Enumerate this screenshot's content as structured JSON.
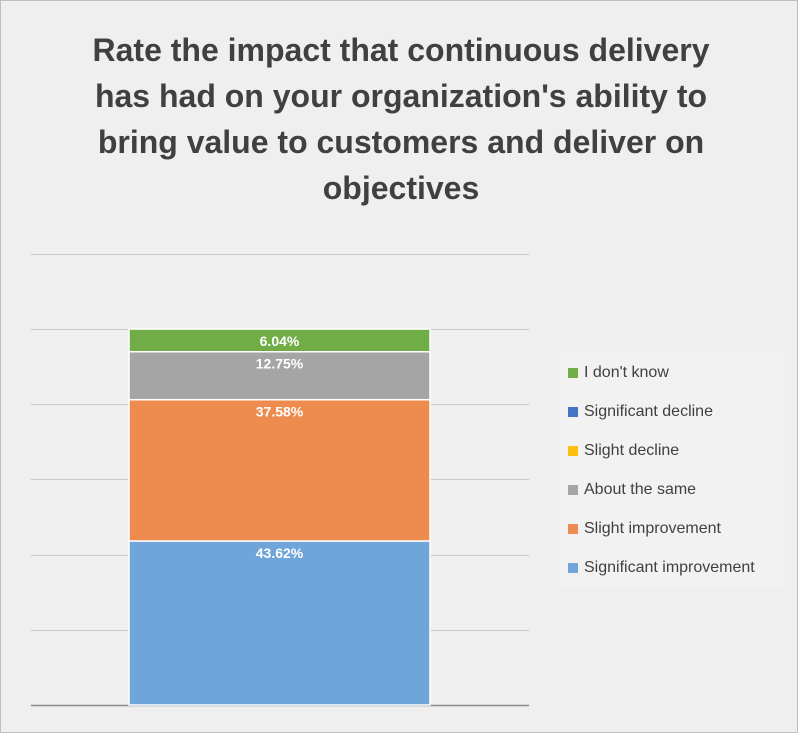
{
  "chart_data": {
    "type": "bar",
    "stacked": true,
    "title": "Rate the impact that continuous delivery has had on your organization's ability to bring value to customers and deliver on objectives",
    "categories": [
      ""
    ],
    "series": [
      {
        "name": "Significant improvement",
        "values": [
          43.62
        ],
        "label": "43.62%",
        "color": "#6fa5d8"
      },
      {
        "name": "Slight improvement",
        "values": [
          37.58
        ],
        "label": "37.58%",
        "color": "#ed8c4e"
      },
      {
        "name": "About the same",
        "values": [
          12.75
        ],
        "label": "12.75%",
        "color": "#a5a5a5"
      },
      {
        "name": "Slight decline",
        "values": [
          0
        ],
        "label": "",
        "color": "#fdc010"
      },
      {
        "name": "Significant decline",
        "values": [
          0
        ],
        "label": "",
        "color": "#4472c4"
      },
      {
        "name": "I don't know",
        "values": [
          6.04
        ],
        "label": "6.04%",
        "color": "#70ad47"
      }
    ],
    "ylim": [
      0,
      125
    ],
    "grid": true,
    "legend": "right"
  }
}
